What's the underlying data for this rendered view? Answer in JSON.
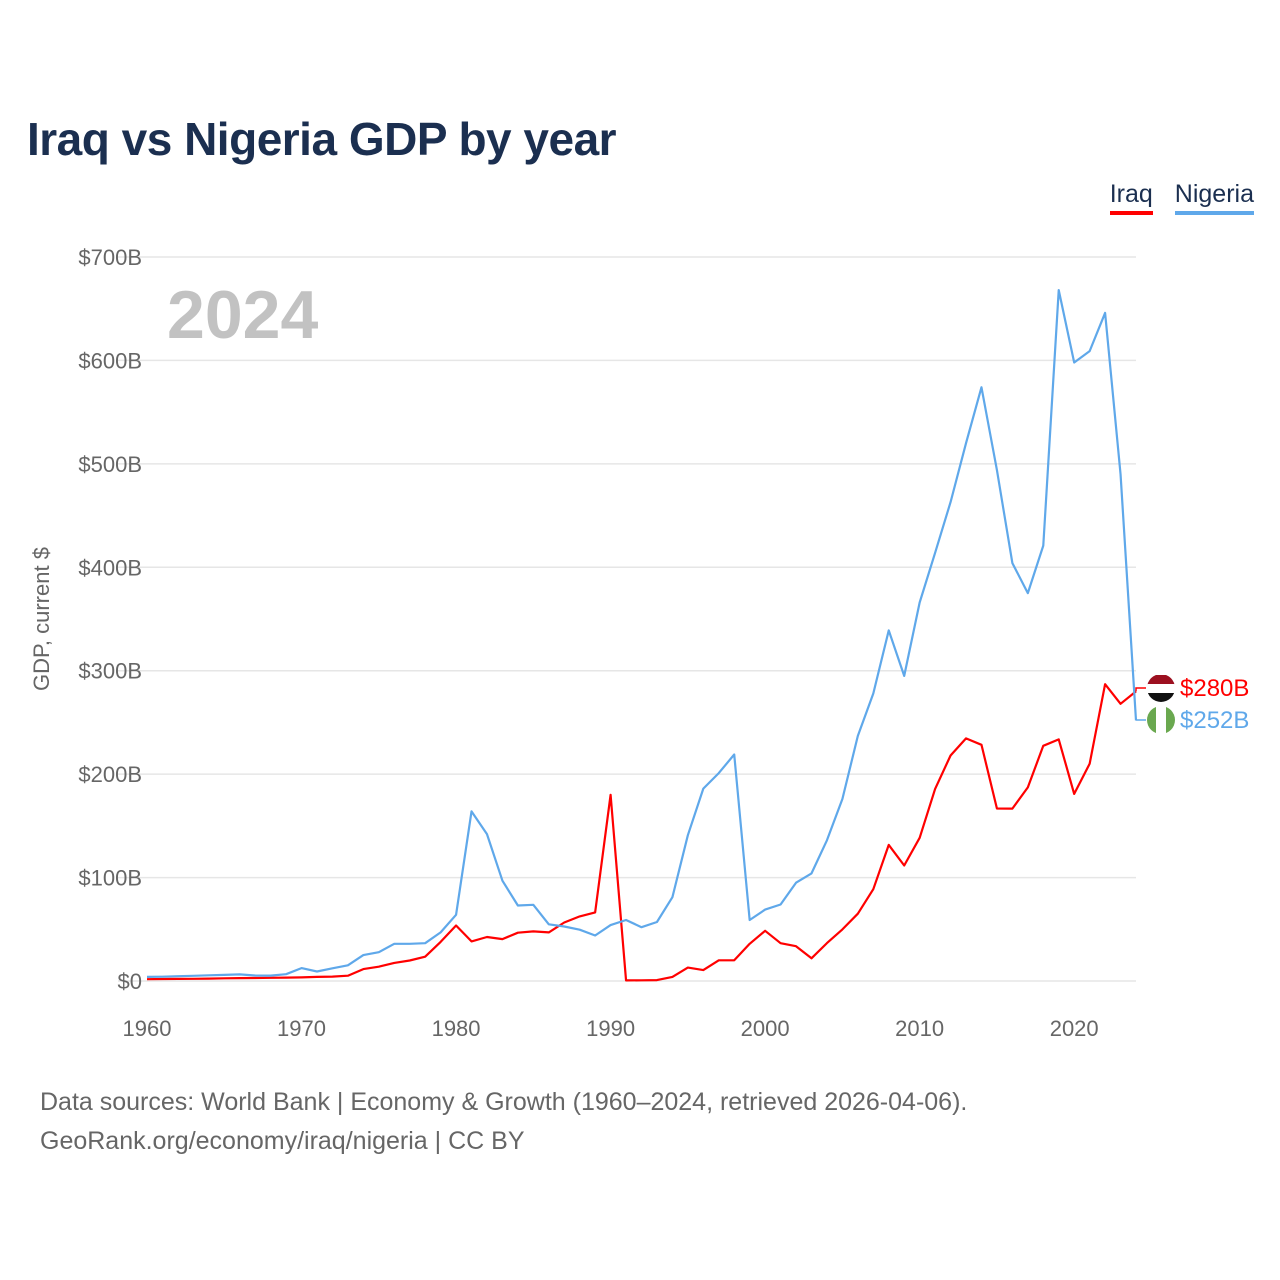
{
  "title": "Iraq vs Nigeria GDP by year",
  "footer": {
    "line1": "Data sources: World Bank | Economy & Growth (1960–2024, retrieved 2026-04-06).",
    "line2": "GeoRank.org/economy/iraq/nigeria | CC BY"
  },
  "chart_data": {
    "type": "line",
    "title": "Iraq vs Nigeria GDP by year",
    "xlabel": "",
    "ylabel": "GDP, current $",
    "watermark_year": "2024",
    "xlim": [
      1960,
      2024
    ],
    "ylim": [
      0,
      700
    ],
    "x_ticks": [
      1960,
      1970,
      1980,
      1990,
      2000,
      2010,
      2020
    ],
    "x_tick_labels": [
      "1960",
      "1970",
      "1980",
      "1990",
      "2000",
      "2010",
      "2020"
    ],
    "y_ticks": [
      0,
      100,
      200,
      300,
      400,
      500,
      600,
      700
    ],
    "y_tick_labels": [
      "$0",
      "$100B",
      "$200B",
      "$300B",
      "$400B",
      "$500B",
      "$600B",
      "$700B"
    ],
    "grid": true,
    "legend_position": "top-right",
    "x": [
      1960,
      1961,
      1962,
      1963,
      1964,
      1965,
      1966,
      1967,
      1968,
      1969,
      1970,
      1971,
      1972,
      1973,
      1974,
      1975,
      1976,
      1977,
      1978,
      1979,
      1980,
      1981,
      1982,
      1983,
      1984,
      1985,
      1986,
      1987,
      1988,
      1989,
      1990,
      1991,
      1992,
      1993,
      1994,
      1995,
      1996,
      1997,
      1998,
      1999,
      2000,
      2001,
      2002,
      2003,
      2004,
      2005,
      2006,
      2007,
      2008,
      2009,
      2010,
      2011,
      2012,
      2013,
      2014,
      2015,
      2016,
      2017,
      2018,
      2019,
      2020,
      2021,
      2022,
      2023,
      2024
    ],
    "series": [
      {
        "name": "Iraq",
        "color": "#ff0000",
        "end_label": "$280B",
        "values": [
          1.7,
          1.9,
          2.0,
          2.1,
          2.3,
          2.6,
          2.8,
          2.9,
          3.1,
          3.3,
          3.5,
          4.0,
          4.3,
          5.1,
          11.5,
          13.8,
          17.5,
          19.8,
          23.5,
          37.8,
          53.7,
          38.3,
          42.5,
          40.5,
          46.7,
          48.0,
          47.0,
          56.6,
          62.5,
          66.3,
          180,
          0.6,
          0.7,
          0.9,
          4.0,
          13.0,
          10.5,
          20.0,
          20.0,
          36.0,
          48.5,
          36.5,
          33.6,
          21.9,
          36.6,
          49.9,
          65.1,
          88.8,
          131.6,
          111.7,
          138.5,
          185.7,
          218.0,
          234.6,
          228.4,
          166.8,
          166.7,
          187.2,
          227.4,
          233.6,
          180.9,
          210.0,
          287.0,
          268.0,
          280.0
        ]
      },
      {
        "name": "Nigeria",
        "color": "#5fa8ea",
        "end_label": "$252B",
        "values": [
          4.0,
          4.2,
          4.6,
          5.0,
          5.5,
          5.9,
          6.4,
          5.3,
          5.2,
          6.6,
          12.5,
          9.2,
          12.3,
          15.2,
          25.0,
          27.8,
          36.0,
          36.0,
          36.5,
          47.0,
          64.0,
          164.0,
          142.0,
          97.0,
          73.0,
          73.7,
          54.8,
          52.7,
          49.6,
          44.0,
          54.0,
          59.0,
          52.0,
          57.0,
          81.0,
          141.0,
          186.0,
          201.0,
          219.0,
          59.0,
          69.0,
          74.0,
          95.0,
          104.0,
          136.0,
          176.0,
          237.0,
          278.0,
          339.0,
          295.0,
          366.0,
          414.0,
          463.0,
          520.0,
          574.0,
          494.0,
          404.0,
          375.0,
          421.0,
          668.0,
          598.0,
          609.0,
          646.0,
          490.0,
          252.0
        ]
      }
    ]
  }
}
